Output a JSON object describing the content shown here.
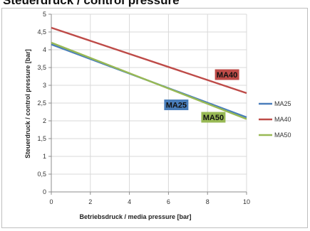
{
  "header_fragment": "Steuerdruck / control pressure",
  "chart_data": {
    "type": "line",
    "xlabel": "Betriebsdruck / media pressure [bar]",
    "ylabel": "Steuerdruck  / control pressure [bar]",
    "xlim": [
      0,
      10
    ],
    "ylim": [
      0,
      5
    ],
    "x_ticks": [
      "0",
      "2",
      "4",
      "6",
      "8",
      "10"
    ],
    "y_ticks": [
      "0",
      "0,5",
      "1",
      "1,5",
      "2",
      "2,5",
      "3",
      "3,5",
      "4",
      "4,5",
      "5"
    ],
    "grid": true,
    "legend_position": "right",
    "series": [
      {
        "name": "MA25",
        "color": "#4a7ebb",
        "x": [
          0,
          10
        ],
        "y": [
          4.15,
          2.1
        ]
      },
      {
        "name": "MA40",
        "color": "#be4b48",
        "x": [
          0,
          10
        ],
        "y": [
          4.62,
          2.78
        ]
      },
      {
        "name": "MA50",
        "color": "#98b954",
        "x": [
          0,
          10
        ],
        "y": [
          4.2,
          2.05
        ]
      }
    ],
    "annotations": [
      {
        "text": "MA40",
        "series": "MA40",
        "x": 9.0,
        "y": 3.3
      },
      {
        "text": "MA25",
        "series": "MA25",
        "x": 6.4,
        "y": 2.45
      },
      {
        "text": "MA50",
        "series": "MA50",
        "x": 8.3,
        "y": 2.1
      }
    ]
  }
}
